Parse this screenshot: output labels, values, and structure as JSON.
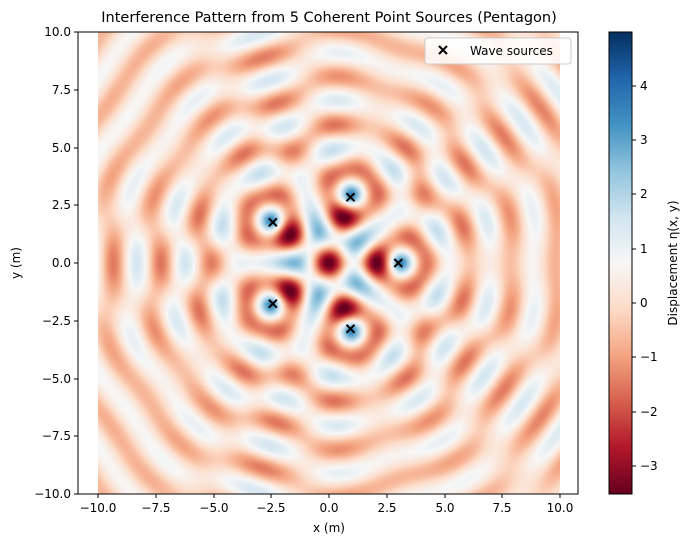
{
  "chart_data": {
    "type": "heatmap",
    "title": "Interference Pattern from 5 Coherent Point Sources (Pentagon)",
    "xlabel": "x (m)",
    "ylabel": "y (m)",
    "xlim": [
      -10,
      10
    ],
    "ylim": [
      -10,
      10
    ],
    "x_ticks": [
      "−10.0",
      "−7.5",
      "−5.0",
      "−2.5",
      "0.0",
      "2.5",
      "5.0",
      "7.5",
      "10.0"
    ],
    "y_ticks": [
      "10.0",
      "7.5",
      "5.0",
      "2.5",
      "0.0",
      "−2.5",
      "−5.0",
      "−7.5",
      "−10.0"
    ],
    "colorbar": {
      "label": "Displacement η(x, y)",
      "colormap": "RdBu",
      "range": [
        -3.5,
        5.0
      ],
      "ticks": [
        "4",
        "3",
        "2",
        "1",
        "0",
        "−1",
        "−2",
        "−3"
      ]
    },
    "legend": {
      "label": "Wave sources",
      "marker": "x",
      "position": "top-right"
    },
    "sources": [
      {
        "x": 3.0,
        "y": 0.0
      },
      {
        "x": 0.93,
        "y": 2.85
      },
      {
        "x": -2.43,
        "y": 1.76
      },
      {
        "x": -2.43,
        "y": -1.76
      },
      {
        "x": 0.93,
        "y": -2.85
      }
    ],
    "wavenumber": 3.2
  }
}
